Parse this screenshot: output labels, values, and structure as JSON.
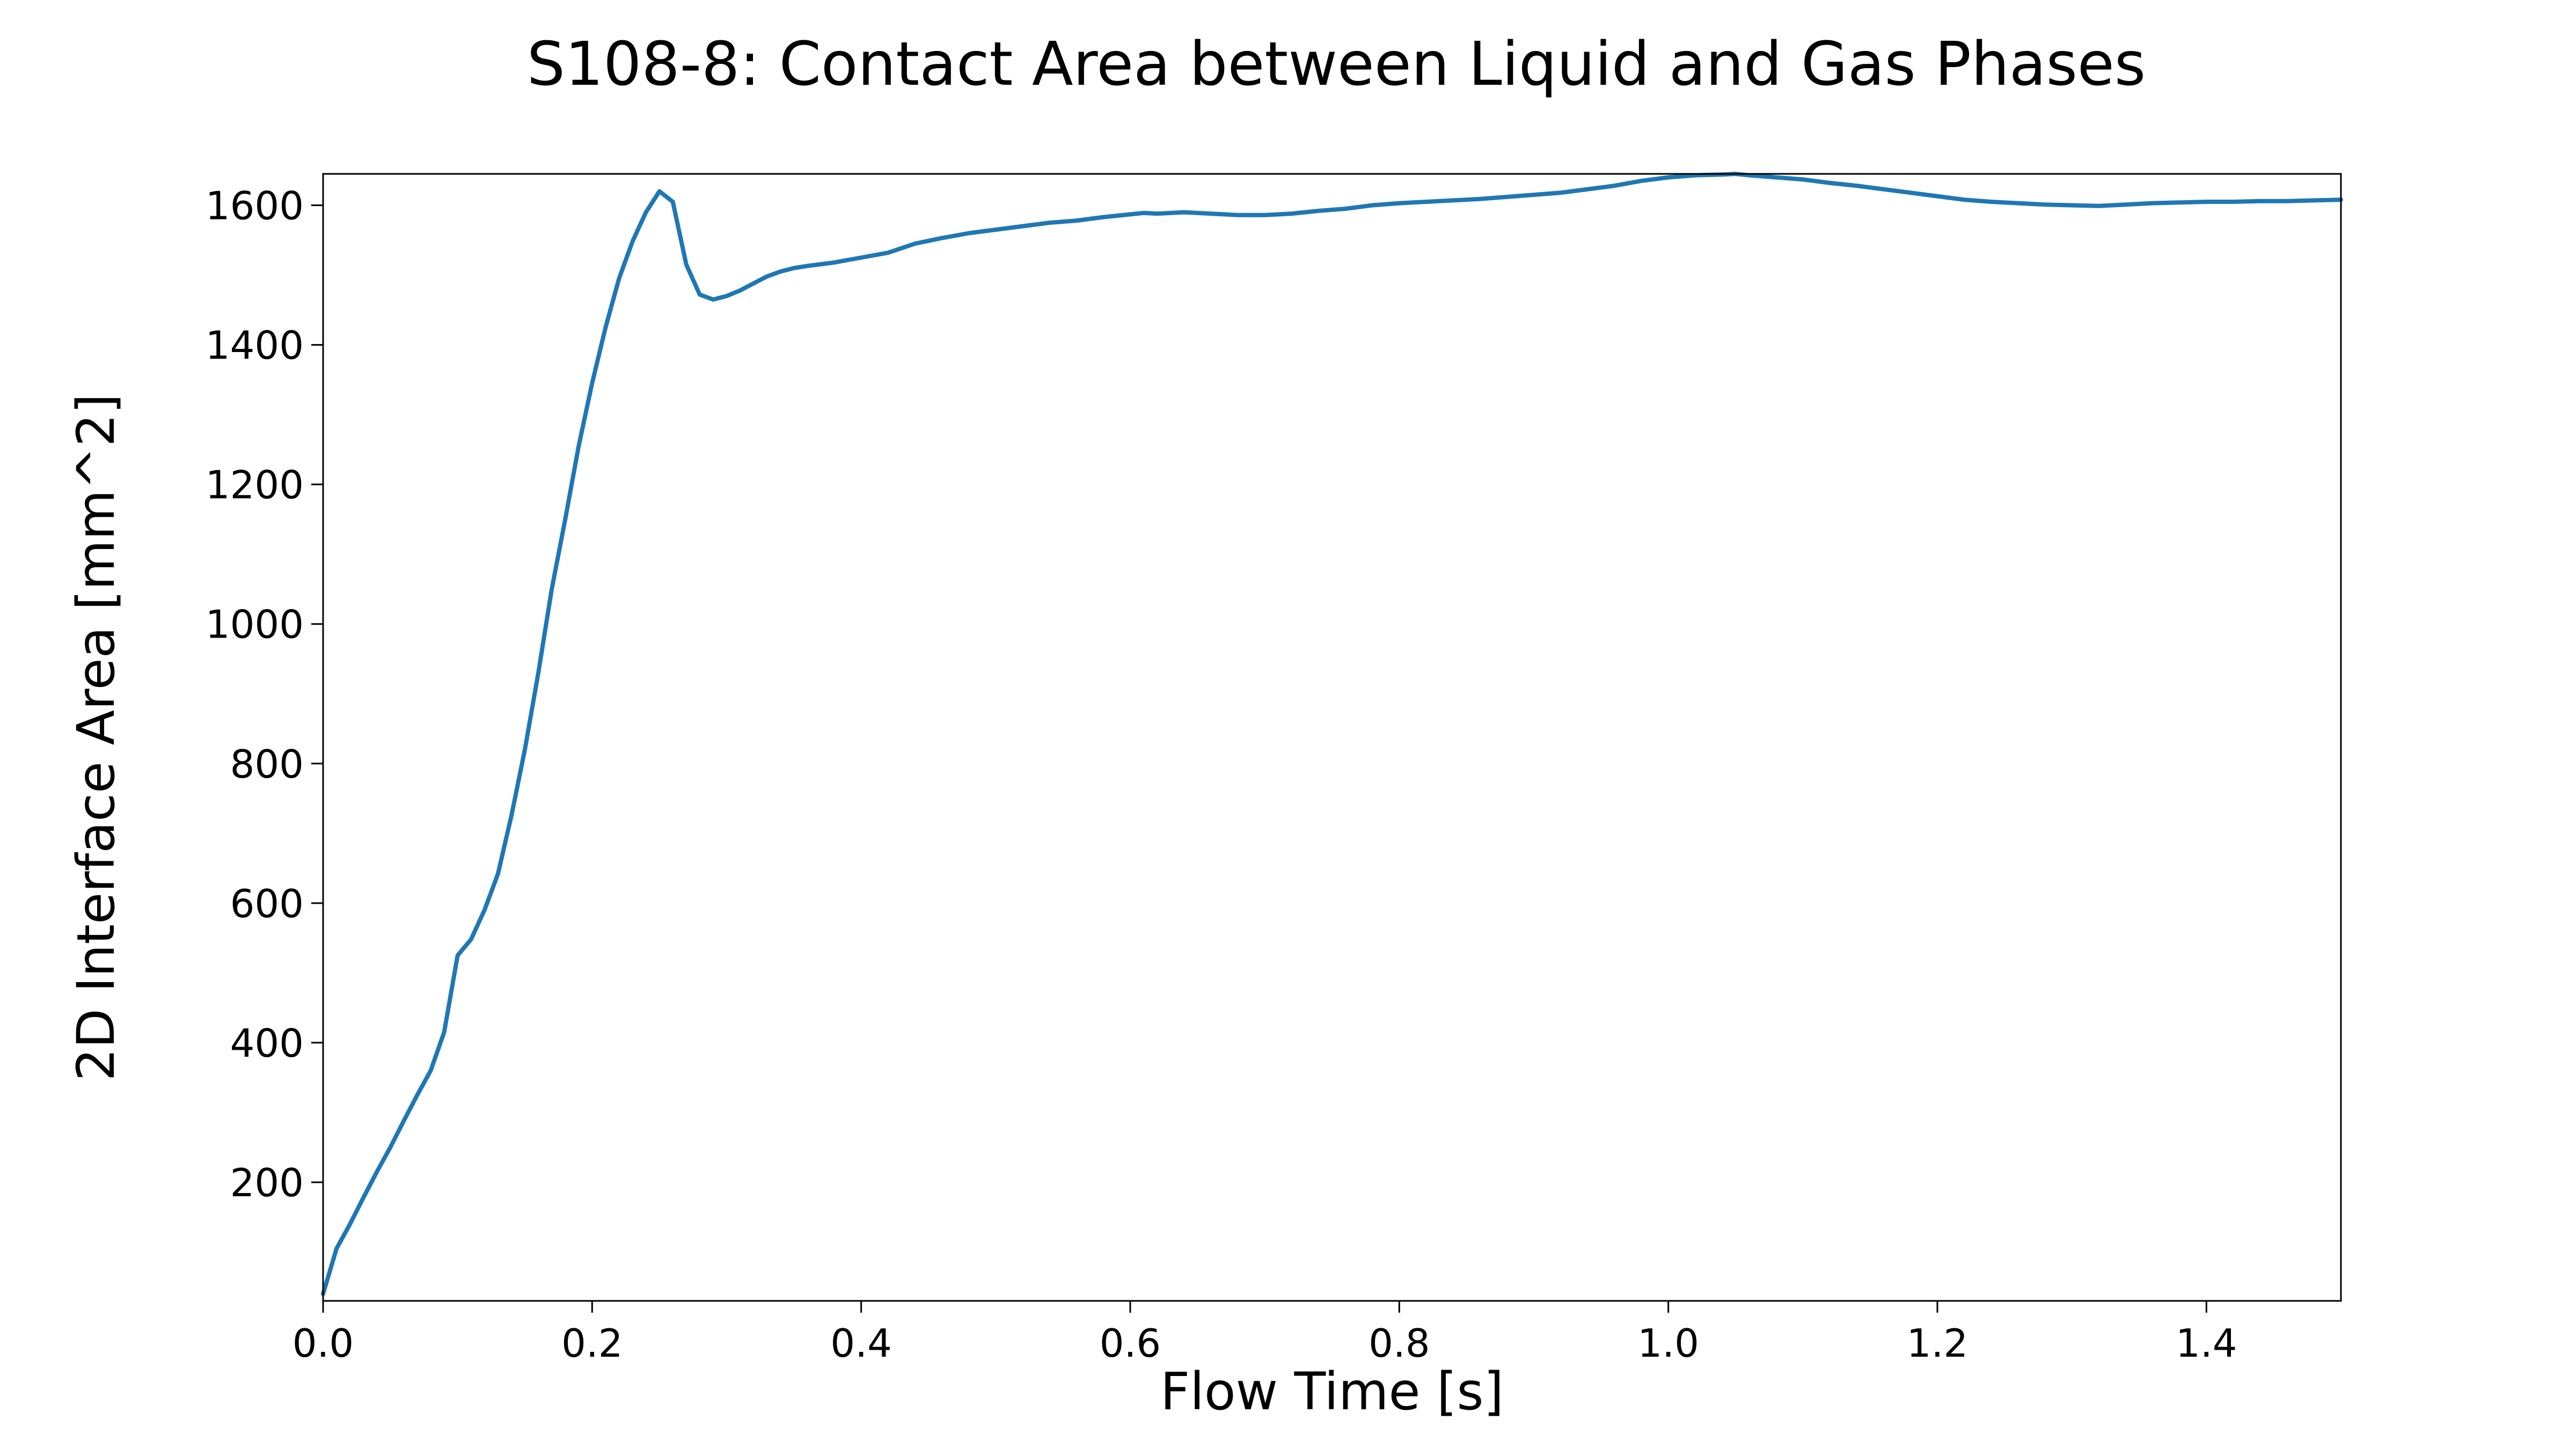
{
  "chart_data": {
    "type": "line",
    "title": "S108-8: Contact Area between Liquid and Gas Phases",
    "xlabel": "Flow Time [s]",
    "ylabel": "2D Interface Area [mm^2]",
    "xlim": [
      0.0,
      1.5
    ],
    "ylim": [
      30,
      1645
    ],
    "xticks": [
      0.0,
      0.2,
      0.4,
      0.6,
      0.8,
      1.0,
      1.2,
      1.4
    ],
    "xtick_labels": [
      "0.0",
      "0.2",
      "0.4",
      "0.6",
      "0.8",
      "1.0",
      "1.2",
      "1.4"
    ],
    "yticks": [
      200,
      400,
      600,
      800,
      1000,
      1200,
      1400,
      1600
    ],
    "ytick_labels": [
      "200",
      "400",
      "600",
      "800",
      "1000",
      "1200",
      "1400",
      "1600"
    ],
    "grid": false,
    "legend": "none",
    "colors": {
      "line": "#1f77b4"
    },
    "series": [
      {
        "x": [
          0.0,
          0.01,
          0.02,
          0.03,
          0.04,
          0.05,
          0.06,
          0.07,
          0.08,
          0.09,
          0.1,
          0.11,
          0.12,
          0.13,
          0.14,
          0.15,
          0.16,
          0.17,
          0.18,
          0.19,
          0.2,
          0.21,
          0.22,
          0.23,
          0.24,
          0.25,
          0.26,
          0.27,
          0.28,
          0.29,
          0.3,
          0.31,
          0.32,
          0.33,
          0.34,
          0.35,
          0.36,
          0.38,
          0.4,
          0.42,
          0.44,
          0.46,
          0.48,
          0.5,
          0.52,
          0.54,
          0.56,
          0.58,
          0.6,
          0.61,
          0.62,
          0.64,
          0.66,
          0.68,
          0.7,
          0.72,
          0.74,
          0.76,
          0.78,
          0.8,
          0.82,
          0.84,
          0.86,
          0.88,
          0.9,
          0.92,
          0.94,
          0.96,
          0.98,
          1.0,
          1.02,
          1.04,
          1.05,
          1.06,
          1.08,
          1.1,
          1.12,
          1.14,
          1.16,
          1.18,
          1.2,
          1.22,
          1.24,
          1.26,
          1.28,
          1.3,
          1.32,
          1.34,
          1.36,
          1.38,
          1.4,
          1.42,
          1.44,
          1.46,
          1.48,
          1.5
        ],
        "y": [
          40,
          105,
          140,
          178,
          215,
          250,
          288,
          325,
          360,
          415,
          525,
          548,
          590,
          642,
          725,
          820,
          930,
          1050,
          1150,
          1255,
          1345,
          1425,
          1495,
          1548,
          1590,
          1620,
          1605,
          1515,
          1472,
          1465,
          1470,
          1478,
          1488,
          1498,
          1505,
          1510,
          1513,
          1518,
          1525,
          1532,
          1545,
          1553,
          1560,
          1565,
          1570,
          1575,
          1578,
          1583,
          1587,
          1589,
          1588,
          1590,
          1588,
          1586,
          1586,
          1588,
          1592,
          1595,
          1600,
          1603,
          1605,
          1607,
          1609,
          1612,
          1615,
          1618,
          1623,
          1628,
          1635,
          1640,
          1643,
          1644,
          1645,
          1643,
          1640,
          1637,
          1632,
          1628,
          1623,
          1618,
          1613,
          1608,
          1605,
          1603,
          1601,
          1600,
          1599,
          1601,
          1603,
          1604,
          1605,
          1605,
          1606,
          1606,
          1607,
          1608
        ]
      }
    ]
  }
}
